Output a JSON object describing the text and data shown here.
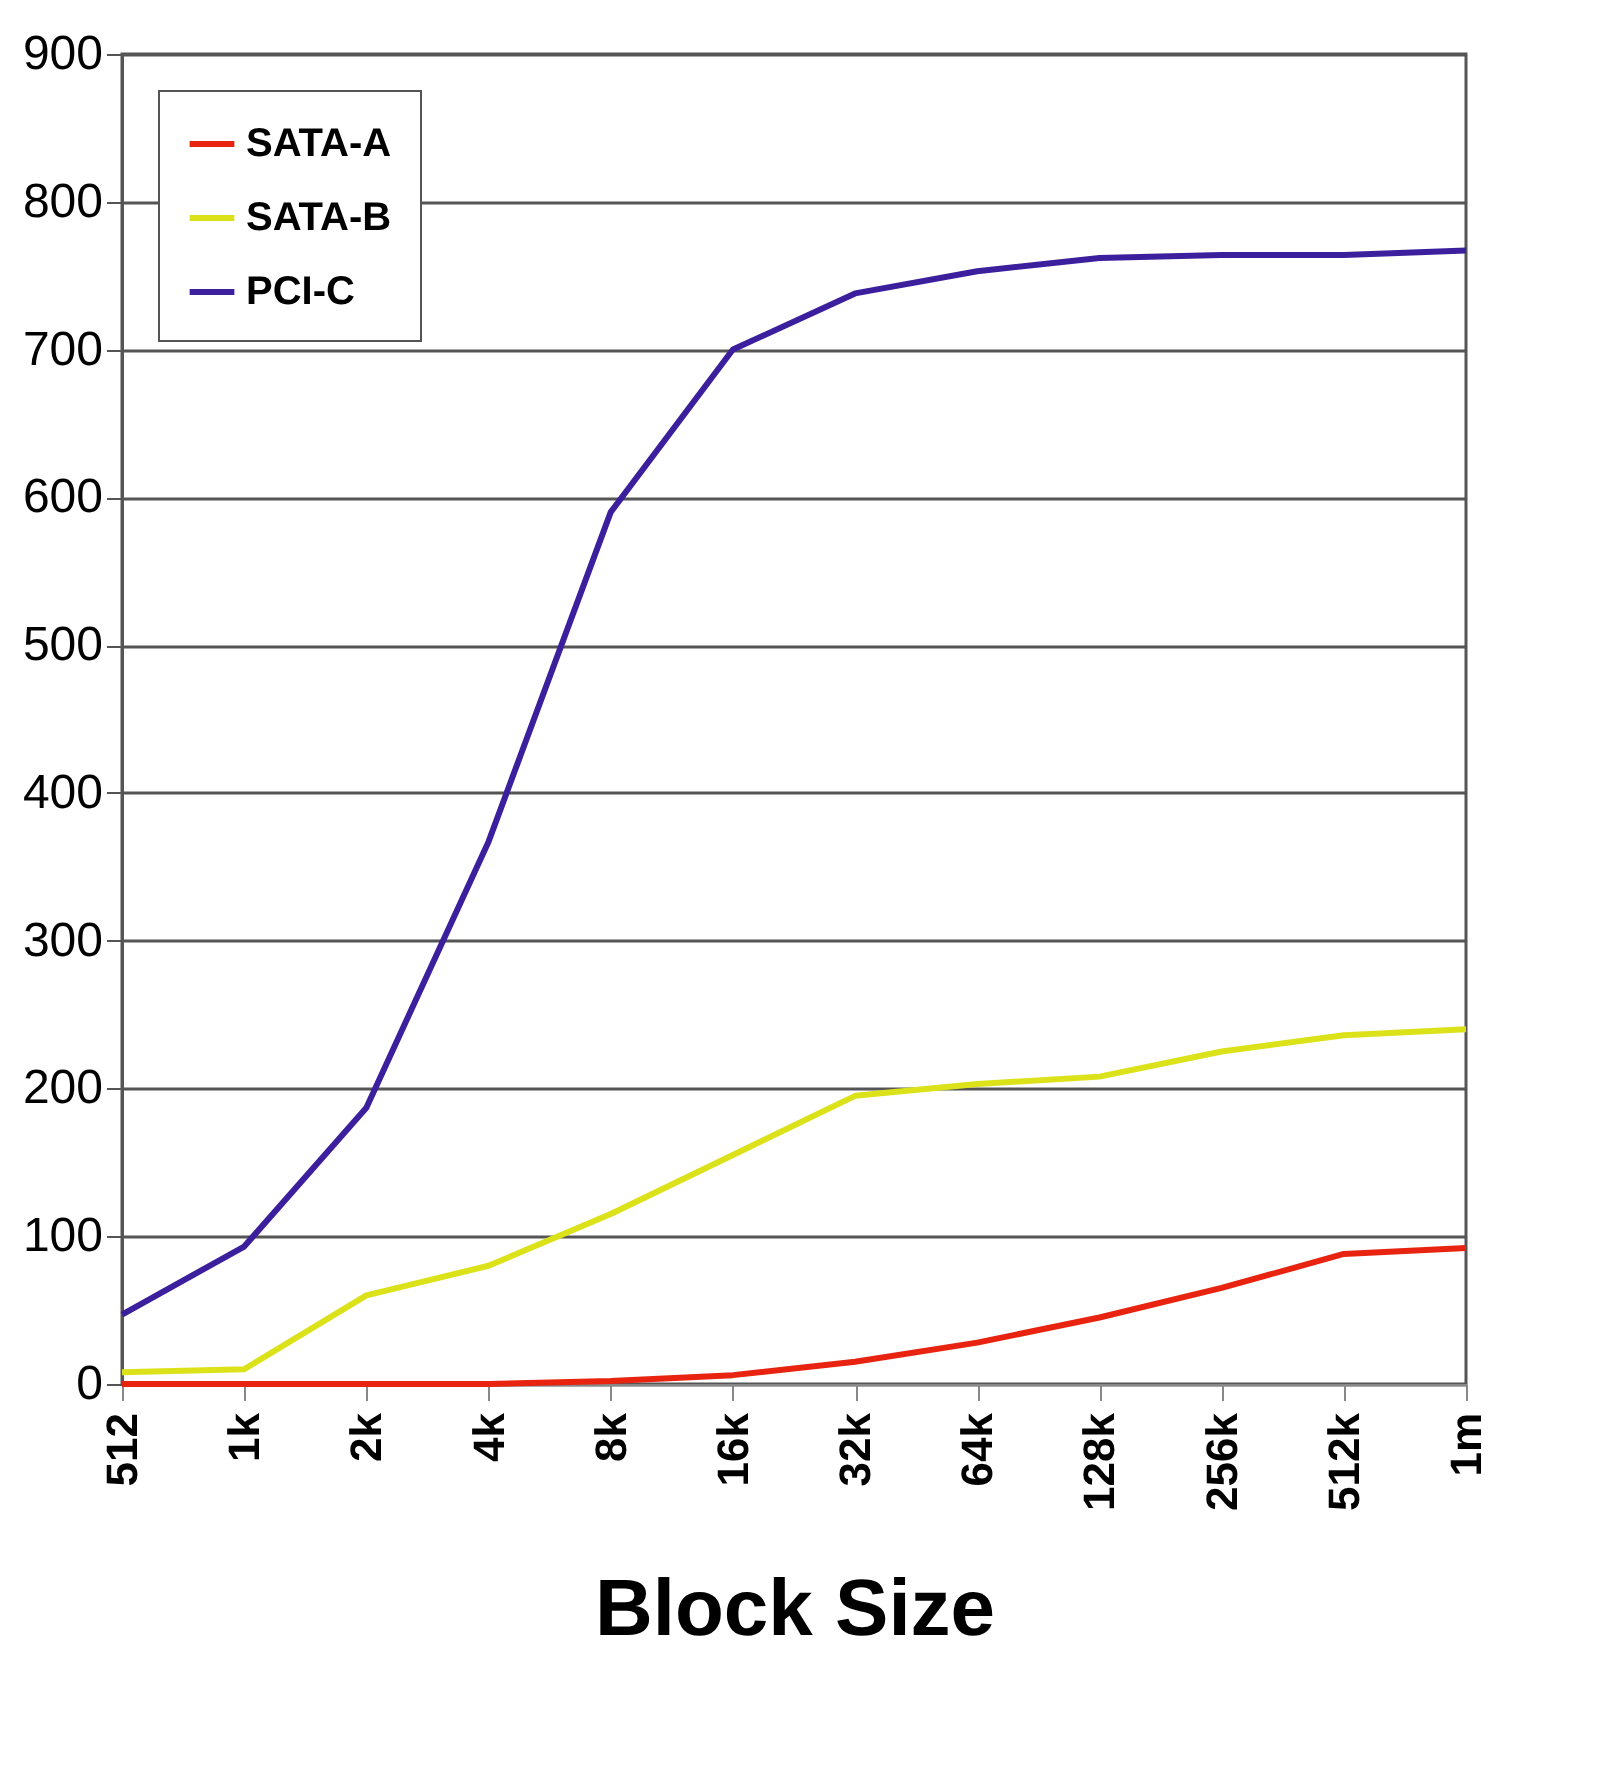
{
  "chart_data": {
    "type": "line",
    "xlabel": "Block Size",
    "categories": [
      "512",
      "1k",
      "2k",
      "4k",
      "8k",
      "16k",
      "32k",
      "64k",
      "128k",
      "256k",
      "512k",
      "1m"
    ],
    "series": [
      {
        "name": "SATA-A",
        "color": "#e8230f",
        "values": [
          0,
          0,
          0,
          0,
          2,
          6,
          15,
          28,
          45,
          65,
          88,
          92
        ]
      },
      {
        "name": "SATA-B",
        "color": "#dce21a",
        "values": [
          8,
          10,
          60,
          80,
          115,
          155,
          195,
          203,
          208,
          225,
          236,
          240
        ]
      },
      {
        "name": "PCI-C",
        "color": "#3c1f9c",
        "values": [
          47,
          93,
          187,
          367,
          590,
          700,
          738,
          753,
          762,
          764,
          764,
          767
        ]
      }
    ],
    "ylim": [
      0,
      900
    ],
    "yticks": [
      0,
      100,
      200,
      300,
      400,
      500,
      600,
      700,
      800,
      900
    ],
    "grid": "y",
    "legend": "top left",
    "marker": "none",
    "line_style": "solid"
  }
}
